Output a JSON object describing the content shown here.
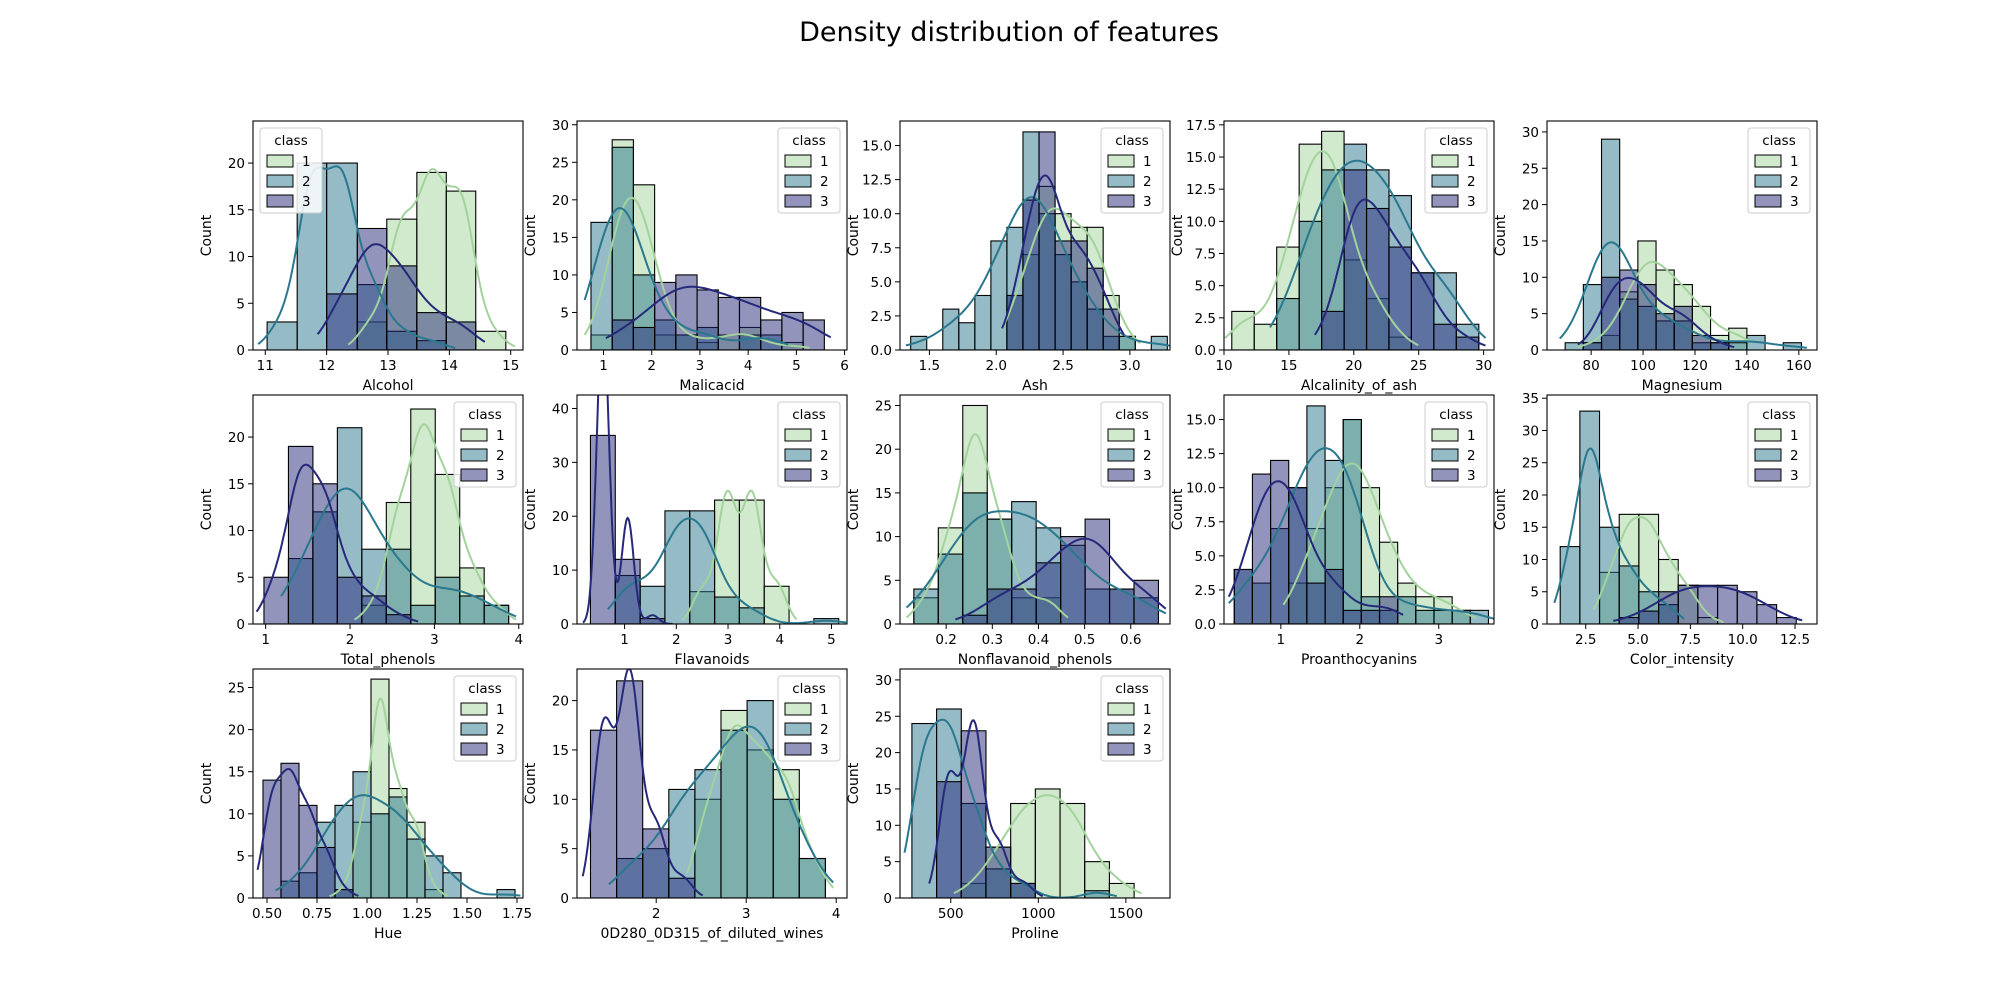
{
  "figure_title": "Density distribution of features",
  "legend_title": "class",
  "class_names": [
    "1",
    "2",
    "3"
  ],
  "class_colors": [
    "#a3d39c",
    "#2a788e",
    "#26297a"
  ],
  "chart_data": [
    {
      "type": "histogram",
      "xlabel": "Alcohol",
      "ylabel": "Count",
      "xlim": [
        10.8,
        15.2
      ],
      "ylim": [
        0,
        24.5
      ],
      "xticks": [
        11,
        12,
        13,
        14,
        15
      ],
      "yticks": [
        0,
        5,
        10,
        15,
        20
      ],
      "legend": "top-left",
      "edges": [
        11.03,
        11.52,
        12.0,
        12.5,
        12.98,
        13.47,
        13.95,
        14.43,
        14.92
      ],
      "counts": [
        [
          0,
          0,
          0,
          3,
          14,
          19,
          17,
          2
        ],
        [
          3,
          20,
          20,
          7,
          2,
          1,
          0,
          0
        ],
        [
          0,
          0,
          6,
          13,
          9,
          4,
          3,
          0
        ]
      ]
    },
    {
      "type": "histogram",
      "xlabel": "Malicacid",
      "ylabel": "Count",
      "xlim": [
        0.45,
        6.05
      ],
      "ylim": [
        0,
        30.5
      ],
      "xticks": [
        1,
        2,
        3,
        4,
        5,
        6
      ],
      "yticks": [
        0,
        5,
        10,
        15,
        20,
        25,
        30
      ],
      "legend": "top-right",
      "edges": [
        0.74,
        1.18,
        1.62,
        2.06,
        2.5,
        2.94,
        3.38,
        3.82,
        4.26,
        4.7,
        5.14,
        5.58
      ],
      "counts": [
        [
          2,
          28,
          22,
          2,
          2,
          1,
          2,
          3,
          0,
          1,
          0
        ],
        [
          17,
          27,
          10,
          4,
          2,
          3,
          0,
          2,
          2,
          0,
          0
        ],
        [
          0,
          4,
          3,
          9,
          10,
          8,
          7,
          7,
          4,
          5,
          4
        ]
      ]
    },
    {
      "type": "histogram",
      "xlabel": "Ash",
      "ylabel": "Count",
      "xlim": [
        1.28,
        3.3
      ],
      "ylim": [
        0,
        16.8
      ],
      "xticks": [
        1.5,
        2.0,
        2.5,
        3.0
      ],
      "yticks": [
        0,
        2.5,
        5.0,
        7.5,
        10.0,
        12.5,
        15.0
      ],
      "legend": "top-right",
      "edges": [
        1.36,
        1.48,
        1.6,
        1.72,
        1.84,
        1.96,
        2.08,
        2.2,
        2.32,
        2.44,
        2.56,
        2.68,
        2.8,
        2.92,
        3.04,
        3.16,
        3.28
      ],
      "counts": [
        [
          0,
          0,
          0,
          0,
          0,
          0,
          4,
          7,
          12,
          10,
          9,
          9,
          4,
          1,
          0,
          0
        ],
        [
          1,
          0,
          3,
          2,
          4,
          8,
          9,
          16,
          10,
          7,
          5,
          3,
          1,
          1,
          0,
          1
        ],
        [
          0,
          0,
          0,
          0,
          0,
          0,
          4,
          11,
          16,
          8,
          8,
          6,
          3,
          0,
          0,
          0
        ]
      ]
    },
    {
      "type": "histogram",
      "xlabel": "Alcalinity_of_ash",
      "ylabel": "Count",
      "xlim": [
        10.0,
        30.8
      ],
      "ylim": [
        0,
        17.8
      ],
      "xticks": [
        10,
        15,
        20,
        25,
        30
      ],
      "yticks": [
        0,
        2.5,
        5.0,
        7.5,
        10.0,
        12.5,
        15.0,
        17.5
      ],
      "legend": "top-right",
      "edges": [
        10.6,
        12.33,
        14.06,
        15.79,
        17.52,
        19.25,
        20.98,
        22.71,
        24.44,
        26.17,
        27.9,
        29.63
      ],
      "counts": [
        [
          3,
          2,
          8,
          16,
          17,
          7,
          4,
          1,
          0,
          0,
          0
        ],
        [
          0,
          0,
          4,
          10,
          14,
          16,
          14,
          12,
          6,
          6,
          2
        ],
        [
          0,
          0,
          0,
          0,
          3,
          14,
          11,
          8,
          6,
          2,
          1
        ]
      ]
    },
    {
      "type": "histogram",
      "xlabel": "Magnesium",
      "ylabel": "Count",
      "xlim": [
        63,
        167
      ],
      "ylim": [
        0,
        31.5
      ],
      "xticks": [
        80,
        100,
        120,
        140,
        160
      ],
      "yticks": [
        0,
        5,
        10,
        15,
        20,
        25,
        30
      ],
      "legend": "top-right",
      "edges": [
        70,
        77,
        84,
        91,
        98,
        105,
        112,
        119,
        126,
        133,
        140,
        147,
        154,
        161
      ],
      "counts": [
        [
          0,
          1,
          2,
          8,
          15,
          11,
          9,
          6,
          2,
          3,
          0,
          0,
          0
        ],
        [
          1,
          9,
          29,
          7,
          6,
          4,
          4,
          1,
          1,
          1,
          2,
          0,
          1
        ],
        [
          0,
          1,
          10,
          11,
          9,
          5,
          6,
          2,
          1,
          0,
          0,
          0,
          0
        ]
      ]
    },
    {
      "type": "histogram",
      "xlabel": "Total_phenols",
      "ylabel": "Count",
      "xlim": [
        0.85,
        4.05
      ],
      "ylim": [
        0,
        24.5
      ],
      "xticks": [
        1,
        2,
        3,
        4
      ],
      "yticks": [
        0,
        5,
        10,
        15,
        20
      ],
      "legend": "top-right",
      "edges": [
        0.98,
        1.27,
        1.56,
        1.85,
        2.14,
        2.43,
        2.72,
        3.01,
        3.3,
        3.59,
        3.88
      ],
      "counts": [
        [
          0,
          0,
          0,
          0,
          2,
          13,
          23,
          16,
          6,
          2
        ],
        [
          0,
          7,
          12,
          21,
          8,
          8,
          2,
          5,
          3,
          2
        ],
        [
          5,
          19,
          15,
          5,
          3,
          1,
          0,
          0,
          0,
          0
        ]
      ]
    },
    {
      "type": "histogram",
      "xlabel": "Flavanoids",
      "ylabel": "Count",
      "xlim": [
        0.08,
        5.3
      ],
      "ylim": [
        0,
        42.5
      ],
      "xticks": [
        1,
        2,
        3,
        4,
        5
      ],
      "yticks": [
        0,
        10,
        20,
        30,
        40
      ],
      "legend": "top-right",
      "edges": [
        0.34,
        0.82,
        1.3,
        1.78,
        2.26,
        2.74,
        3.22,
        3.7,
        4.18,
        4.66,
        5.14
      ],
      "counts": [
        [
          0,
          0,
          0,
          0,
          6,
          23,
          23,
          7,
          0,
          0
        ],
        [
          0,
          9,
          7,
          21,
          21,
          5,
          3,
          0,
          0,
          1
        ],
        [
          35,
          12,
          1,
          0,
          0,
          0,
          0,
          0,
          0,
          0
        ]
      ]
    },
    {
      "type": "histogram",
      "xlabel": "Nonflavanoid_phenols",
      "ylabel": "Count",
      "xlim": [
        0.1,
        0.685
      ],
      "ylim": [
        0,
        26.2
      ],
      "xticks": [
        0.2,
        0.3,
        0.4,
        0.5,
        0.6
      ],
      "yticks": [
        0,
        5,
        10,
        15,
        20,
        25
      ],
      "legend": "top-right",
      "edges": [
        0.13,
        0.183,
        0.236,
        0.289,
        0.342,
        0.395,
        0.448,
        0.501,
        0.554,
        0.607,
        0.66
      ],
      "counts": [
        [
          3,
          11,
          25,
          12,
          3,
          3,
          0,
          0,
          0,
          0
        ],
        [
          4,
          8,
          15,
          12,
          14,
          11,
          9,
          4,
          4,
          3
        ],
        [
          0,
          0,
          1,
          4,
          4,
          7,
          10,
          12,
          4,
          5
        ]
      ]
    },
    {
      "type": "histogram",
      "xlabel": "Proanthocyanins",
      "ylabel": "Count",
      "xlim": [
        0.28,
        3.7
      ],
      "ylim": [
        0,
        16.8
      ],
      "xticks": [
        1,
        2,
        3
      ],
      "yticks": [
        0,
        2.5,
        5.0,
        7.5,
        10.0,
        12.5,
        15.0
      ],
      "legend": "top-right",
      "edges": [
        0.41,
        0.64,
        0.87,
        1.1,
        1.33,
        1.56,
        1.79,
        2.02,
        2.25,
        2.48,
        2.71,
        2.94,
        3.17,
        3.4,
        3.63
      ],
      "counts": [
        [
          0,
          0,
          0,
          3,
          7,
          10,
          15,
          10,
          6,
          3,
          2,
          2,
          1,
          0
        ],
        [
          4,
          3,
          7,
          10,
          16,
          12,
          15,
          2,
          1,
          2,
          1,
          1,
          1,
          1
        ],
        [
          4,
          11,
          12,
          10,
          3,
          4,
          1,
          1,
          2,
          0,
          0,
          0,
          0,
          0
        ]
      ]
    },
    {
      "type": "histogram",
      "xlabel": "Color_intensity",
      "ylabel": "Count",
      "xlim": [
        0.65,
        13.55
      ],
      "ylim": [
        0,
        35.5
      ],
      "xticks": [
        2.5,
        5.0,
        7.5,
        10.0,
        12.5
      ],
      "yticks": [
        0,
        5,
        10,
        15,
        20,
        25,
        30,
        35
      ],
      "legend": "top-right",
      "edges": [
        1.28,
        2.22,
        3.16,
        4.1,
        5.04,
        5.98,
        6.92,
        7.86,
        8.8,
        9.74,
        10.68,
        11.62,
        12.56
      ],
      "counts": [
        [
          0,
          0,
          8,
          17,
          17,
          10,
          6,
          1,
          0,
          0,
          0,
          0
        ],
        [
          12,
          33,
          15,
          9,
          5,
          3,
          0,
          0,
          0,
          0,
          0,
          0
        ],
        [
          0,
          0,
          0,
          1,
          2,
          5,
          6,
          6,
          6,
          5,
          3,
          1
        ]
      ]
    },
    {
      "type": "histogram",
      "xlabel": "Hue",
      "ylabel": "Count",
      "xlim": [
        0.43,
        1.78
      ],
      "ylim": [
        0,
        27.2
      ],
      "xticks": [
        0.5,
        0.75,
        1.0,
        1.25,
        1.5,
        1.75
      ],
      "yticks": [
        0,
        5,
        10,
        15,
        20,
        25
      ],
      "legend": "top-right",
      "edges": [
        0.48,
        0.57,
        0.66,
        0.75,
        0.84,
        0.93,
        1.02,
        1.11,
        1.2,
        1.29,
        1.38,
        1.47,
        1.56,
        1.65,
        1.74
      ],
      "counts": [
        [
          0,
          0,
          0,
          0,
          1,
          9,
          26,
          13,
          9,
          1,
          0,
          0,
          0,
          0
        ],
        [
          0,
          2,
          3,
          9,
          11,
          15,
          10,
          12,
          7,
          5,
          3,
          0,
          0,
          1
        ],
        [
          14,
          16,
          11,
          6,
          1,
          0,
          0,
          0,
          0,
          0,
          0,
          0,
          0,
          0
        ]
      ]
    },
    {
      "type": "histogram",
      "xlabel": "0D280_0D315_of_diluted_wines",
      "ylabel": "Count",
      "xlim": [
        1.12,
        4.12
      ],
      "ylim": [
        0,
        23.2
      ],
      "xticks": [
        2,
        3,
        4
      ],
      "yticks": [
        0,
        5,
        10,
        15,
        20
      ],
      "legend": "top-right",
      "edges": [
        1.27,
        1.56,
        1.85,
        2.14,
        2.43,
        2.72,
        3.01,
        3.3,
        3.59,
        3.88
      ],
      "counts": [
        [
          0,
          0,
          0,
          0,
          10,
          19,
          15,
          13,
          4
        ],
        [
          0,
          4,
          5,
          11,
          13,
          17,
          20,
          10,
          4
        ],
        [
          17,
          22,
          7,
          2,
          0,
          0,
          0,
          0,
          0
        ]
      ]
    },
    {
      "type": "histogram",
      "xlabel": "Proline",
      "ylabel": "Count",
      "xlim": [
        210,
        1752
      ],
      "ylim": [
        0,
        31.5
      ],
      "xticks": [
        500,
        1000,
        1500
      ],
      "yticks": [
        0,
        5,
        10,
        15,
        20,
        25,
        30
      ],
      "legend": "top-right",
      "edges": [
        278,
        419,
        560,
        701,
        842,
        983,
        1124,
        1265,
        1406,
        1547,
        1688
      ],
      "counts": [
        [
          0,
          0,
          2,
          7,
          13,
          15,
          13,
          5,
          2,
          0
        ],
        [
          24,
          26,
          13,
          4,
          2,
          0,
          0,
          1,
          0,
          0
        ],
        [
          0,
          16,
          23,
          7,
          2,
          0,
          0,
          0,
          0,
          0
        ]
      ]
    }
  ]
}
